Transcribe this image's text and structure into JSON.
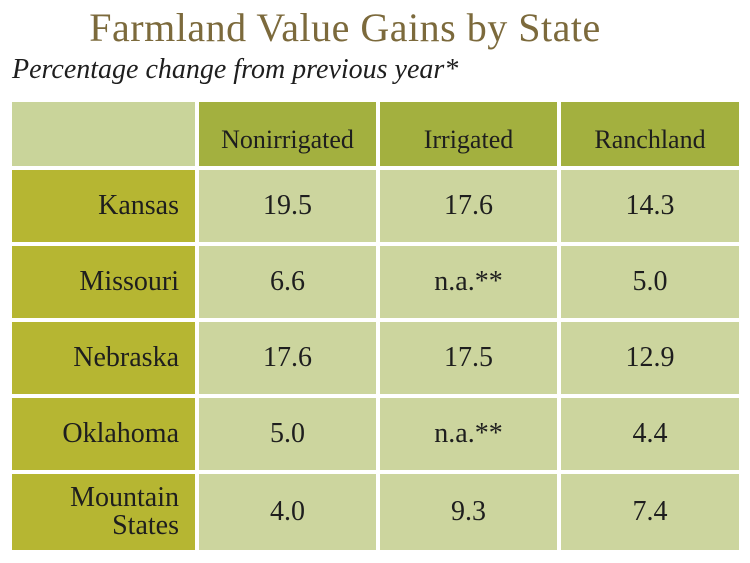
{
  "title": "Farmland Value Gains by State",
  "subtitle": "Percentage change from previous year*",
  "chart_data": {
    "type": "table",
    "columns": [
      "Nonirrigated",
      "Irrigated",
      "Ranchland"
    ],
    "rows": [
      {
        "label": [
          "Kansas"
        ],
        "values": [
          "19.5",
          "17.6",
          "14.3"
        ]
      },
      {
        "label": [
          "Missouri"
        ],
        "values": [
          "6.6",
          "n.a.**",
          "5.0"
        ]
      },
      {
        "label": [
          "Nebraska"
        ],
        "values": [
          "17.6",
          "17.5",
          "12.9"
        ]
      },
      {
        "label": [
          "Oklahoma"
        ],
        "values": [
          "5.0",
          "n.a.**",
          "4.4"
        ]
      },
      {
        "label": [
          "Mountain",
          "States"
        ],
        "values": [
          "4.0",
          "9.3",
          "7.4"
        ]
      }
    ],
    "colors": {
      "title": "#7c6a3c",
      "header": "#a3b03f",
      "row_label": "#b6b632",
      "cell": "#ccd59e",
      "corner": "#c9d49a"
    }
  }
}
